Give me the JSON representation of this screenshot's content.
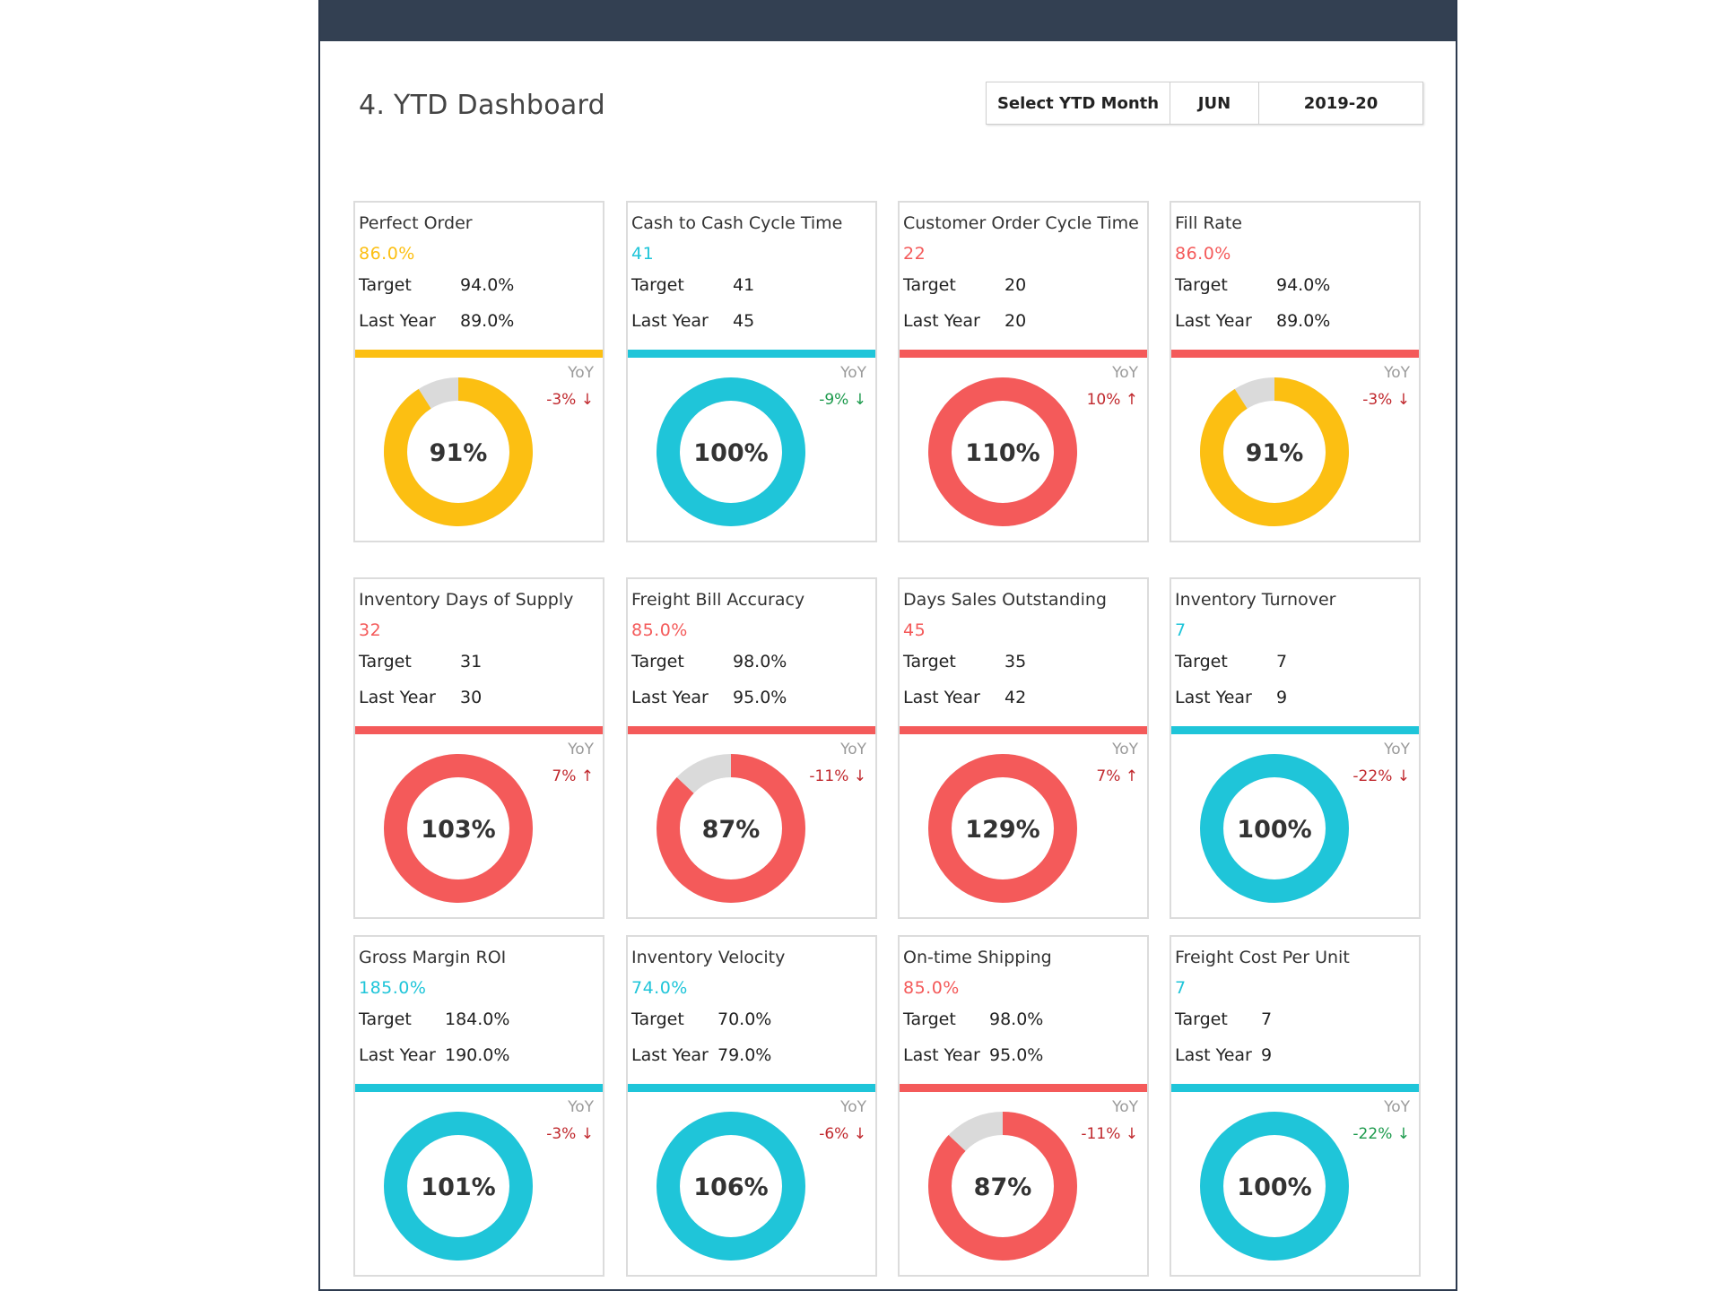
{
  "page": {
    "title": "4. YTD Dashboard",
    "selector": {
      "label": "Select YTD Month",
      "month": "JUN",
      "year": "2019-20"
    }
  },
  "colors": {
    "yellow": "#fcbf12",
    "cyan": "#1fc5d9",
    "red": "#f45a5a",
    "grey": "#dadada",
    "up_red": "#c0282d",
    "down_green": "#1c9a4c"
  },
  "cards": [
    {
      "name": "Perfect Order",
      "value": "86.0%",
      "color": "yellow",
      "target_label": "Target",
      "target": "94.0%",
      "last_label": "Last Year",
      "last": "89.0%",
      "yoy_label": "YoY",
      "yoy": "-3% ↓",
      "yoy_color": "up_red",
      "pct_text": "91%",
      "pct": 91
    },
    {
      "name": "Cash to Cash Cycle Time",
      "value": "41",
      "color": "cyan",
      "target_label": "Target",
      "target": "41",
      "last_label": "Last Year",
      "last": "45",
      "yoy_label": "YoY",
      "yoy": "-9% ↓",
      "yoy_color": "down_green",
      "pct_text": "100%",
      "pct": 100
    },
    {
      "name": "Customer Order Cycle Time",
      "value": "22",
      "color": "red",
      "target_label": "Target",
      "target": "20",
      "last_label": "Last Year",
      "last": "20",
      "yoy_label": "YoY",
      "yoy": "10% ↑",
      "yoy_color": "up_red",
      "pct_text": "110%",
      "pct": 110
    },
    {
      "name": "Fill Rate",
      "value": "86.0%",
      "color": "red",
      "bar_color": "red",
      "donut_color": "yellow",
      "target_label": "Target",
      "target": "94.0%",
      "last_label": "Last Year",
      "last": "89.0%",
      "yoy_label": "YoY",
      "yoy": "-3% ↓",
      "yoy_color": "up_red",
      "pct_text": "91%",
      "pct": 91
    },
    {
      "name": "Inventory Days of Supply",
      "value": "32",
      "color": "red",
      "target_label": "Target",
      "target": "31",
      "last_label": "Last Year",
      "last": "30",
      "yoy_label": "YoY",
      "yoy": "7% ↑",
      "yoy_color": "up_red",
      "pct_text": "103%",
      "pct": 103
    },
    {
      "name": "Freight Bill Accuracy",
      "value": "85.0%",
      "color": "red",
      "target_label": "Target",
      "target": "98.0%",
      "last_label": "Last Year",
      "last": "95.0%",
      "yoy_label": "YoY",
      "yoy": "-11% ↓",
      "yoy_color": "up_red",
      "pct_text": "87%",
      "pct": 87
    },
    {
      "name": "Days Sales Outstanding",
      "value": "45",
      "color": "red",
      "target_label": "Target",
      "target": "35",
      "last_label": "Last Year",
      "last": "42",
      "yoy_label": "YoY",
      "yoy": "7% ↑",
      "yoy_color": "up_red",
      "pct_text": "129%",
      "pct": 129
    },
    {
      "name": "Inventory Turnover",
      "value": "7",
      "color": "cyan",
      "target_label": "Target",
      "target": "7",
      "last_label": "Last Year",
      "last": "9",
      "yoy_label": "YoY",
      "yoy": "-22% ↓",
      "yoy_color": "up_red",
      "pct_text": "100%",
      "pct": 100
    },
    {
      "name": "Gross Margin ROI",
      "value": "185.0%",
      "color": "cyan",
      "target_label": "Target",
      "target": "184.0%",
      "last_label": "Last Year",
      "last": "190.0%",
      "yoy_label": "YoY",
      "yoy": "-3% ↓",
      "yoy_color": "up_red",
      "pct_text": "101%",
      "pct": 101
    },
    {
      "name": "Inventory Velocity",
      "value": "74.0%",
      "color": "cyan",
      "target_label": "Target",
      "target": "70.0%",
      "last_label": "Last Year",
      "last": "79.0%",
      "yoy_label": "YoY",
      "yoy": "-6% ↓",
      "yoy_color": "up_red",
      "pct_text": "106%",
      "pct": 106
    },
    {
      "name": "On-time Shipping",
      "value": "85.0%",
      "color": "red",
      "target_label": "Target",
      "target": "98.0%",
      "last_label": "Last Year",
      "last": "95.0%",
      "yoy_label": "YoY",
      "yoy": "-11% ↓",
      "yoy_color": "up_red",
      "pct_text": "87%",
      "pct": 87
    },
    {
      "name": "Freight Cost Per Unit",
      "value": "7",
      "color": "cyan",
      "target_label": "Target",
      "target": "7",
      "last_label": "Last Year",
      "last": "9",
      "yoy_label": "YoY",
      "yoy": "-22% ↓",
      "yoy_color": "down_green",
      "pct_text": "100%",
      "pct": 100
    }
  ]
}
